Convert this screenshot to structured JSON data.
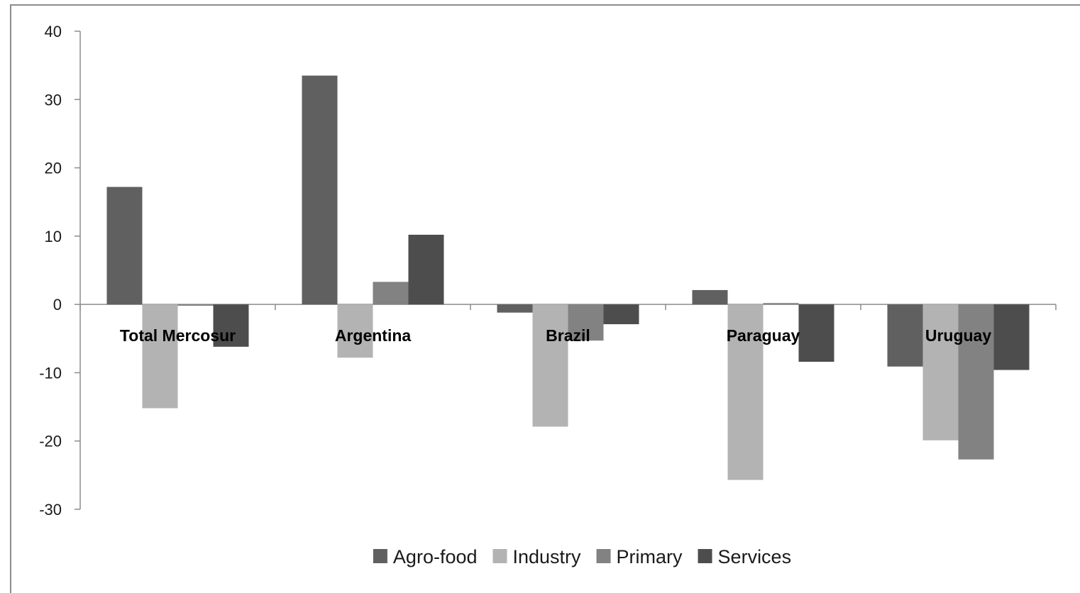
{
  "chart_data": {
    "type": "bar",
    "title": "",
    "xlabel": "",
    "ylabel": "",
    "categories": [
      "Total Mercosur",
      "Argentina",
      "Brazil",
      "Paraguay",
      "Uruguay"
    ],
    "series": [
      {
        "name": "Agro-food",
        "values": [
          17.2,
          33.5,
          -1.2,
          2.1,
          -9.1
        ],
        "color": "#606060"
      },
      {
        "name": "Industry",
        "values": [
          -15.2,
          -7.8,
          -17.9,
          -25.7,
          -19.9
        ],
        "color": "#b3b3b3"
      },
      {
        "name": "Primary",
        "values": [
          -0.2,
          3.3,
          -5.3,
          0.2,
          -22.7
        ],
        "color": "#828282"
      },
      {
        "name": "Services",
        "values": [
          -6.2,
          10.2,
          -2.9,
          -8.4,
          -9.6
        ],
        "color": "#4d4d4d"
      }
    ],
    "ylim": [
      -30,
      40
    ],
    "yticks": [
      40,
      30,
      20,
      10,
      0,
      -10,
      -20,
      -30
    ],
    "grid": false,
    "legend": "bottom-center"
  }
}
